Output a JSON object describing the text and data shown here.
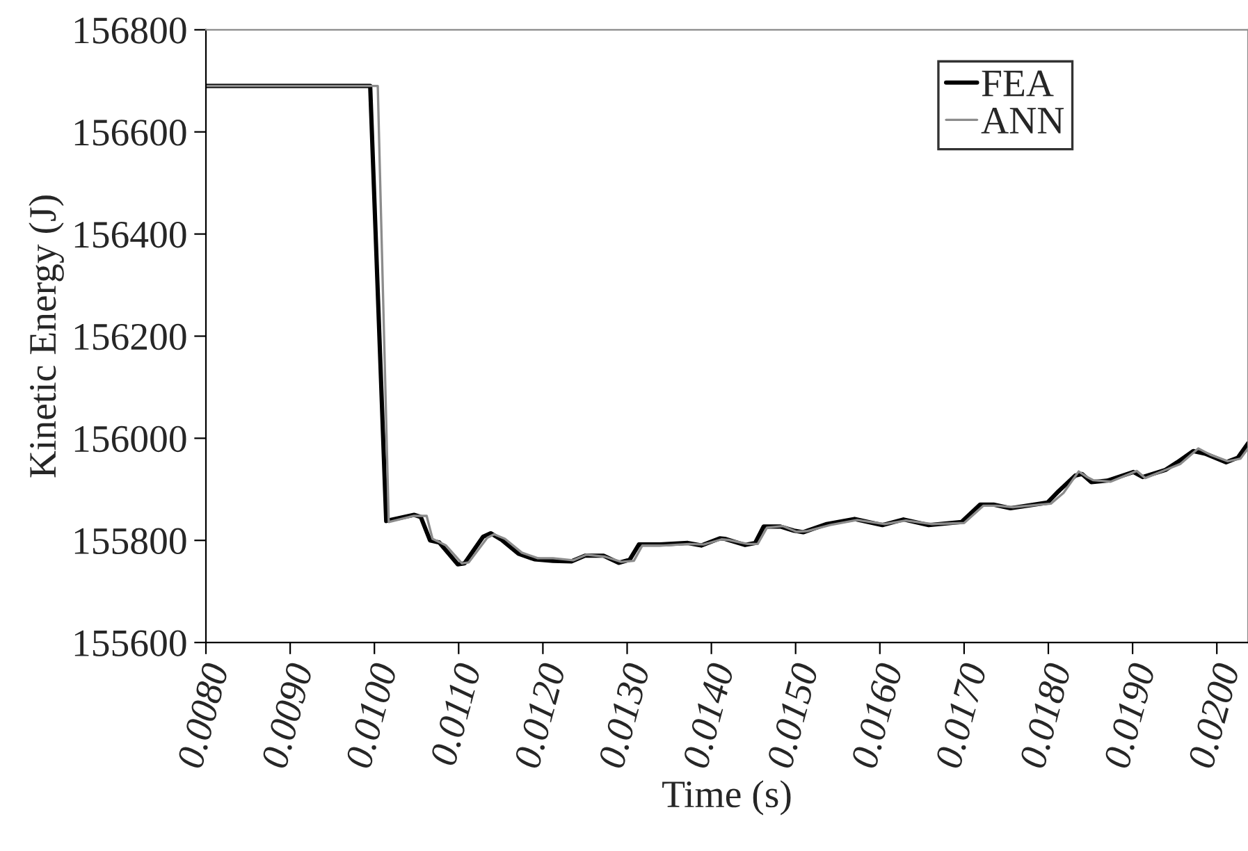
{
  "chart_data": {
    "type": "line",
    "xlabel": "Time (s)",
    "ylabel": "Kinetic Energy (J)",
    "xlim": [
      0.008,
      0.02037
    ],
    "ylim": [
      155600,
      156800
    ],
    "xticks": [
      {
        "value": 0.008,
        "label": "0.0080"
      },
      {
        "value": 0.009,
        "label": "0.0090"
      },
      {
        "value": 0.01,
        "label": "0.0100"
      },
      {
        "value": 0.011,
        "label": "0.0110"
      },
      {
        "value": 0.012,
        "label": "0.0120"
      },
      {
        "value": 0.013,
        "label": "0.0130"
      },
      {
        "value": 0.014,
        "label": "0.0140"
      },
      {
        "value": 0.015,
        "label": "0.0150"
      },
      {
        "value": 0.016,
        "label": "0.0160"
      },
      {
        "value": 0.017,
        "label": "0.0170"
      },
      {
        "value": 0.018,
        "label": "0.0180"
      },
      {
        "value": 0.019,
        "label": "0.0190"
      },
      {
        "value": 0.02,
        "label": "0.0200"
      }
    ],
    "yticks": [
      155600,
      155800,
      156000,
      156200,
      156400,
      156600,
      156800
    ],
    "grid": false,
    "legend": "top right",
    "marker": "none",
    "line_style": "solid",
    "series": [
      {
        "name": "FEA",
        "color": "#000000",
        "x": [
          0.008,
          0.00995,
          0.01014,
          0.01047,
          0.01055,
          0.01066,
          0.01077,
          0.01099,
          0.01107,
          0.01129,
          0.01138,
          0.01151,
          0.01171,
          0.0119,
          0.01212,
          0.01234,
          0.0125,
          0.01272,
          0.0129,
          0.01303,
          0.01314,
          0.01339,
          0.01372,
          0.01388,
          0.0141,
          0.01416,
          0.0144,
          0.01452,
          0.01462,
          0.01482,
          0.01498,
          0.01509,
          0.01537,
          0.0157,
          0.01603,
          0.01628,
          0.01658,
          0.01697,
          0.01719,
          0.01735,
          0.01755,
          0.01799,
          0.01812,
          0.01832,
          0.0184,
          0.01851,
          0.0187,
          0.01901,
          0.01912,
          0.01939,
          0.01953,
          0.01972,
          0.01986,
          0.02011,
          0.02025,
          0.02037
        ],
        "values": [
          156690,
          156690,
          155838,
          155850,
          155846,
          155800,
          155796,
          155753,
          155755,
          155807,
          155814,
          155801,
          155774,
          155763,
          155760,
          155759,
          155770,
          155770,
          155756,
          155762,
          155792,
          155792,
          155795,
          155790,
          155804,
          155803,
          155791,
          155795,
          155827,
          155827,
          155819,
          155816,
          155832,
          155842,
          155830,
          155841,
          155830,
          155836,
          155870,
          155870,
          155863,
          155874,
          155896,
          155927,
          155930,
          155914,
          155917,
          155934,
          155924,
          155938,
          155953,
          155975,
          155970,
          155953,
          155962,
          155990
        ]
      },
      {
        "name": "ANN",
        "color": "#8c8c8c",
        "x": [
          0.008,
          0.01004,
          0.01017,
          0.01047,
          0.01062,
          0.01069,
          0.01085,
          0.01104,
          0.01112,
          0.01134,
          0.01142,
          0.01155,
          0.01175,
          0.01194,
          0.01212,
          0.01236,
          0.01252,
          0.01274,
          0.01293,
          0.01308,
          0.01318,
          0.01343,
          0.01374,
          0.01391,
          0.01412,
          0.0142,
          0.01443,
          0.01455,
          0.01466,
          0.01485,
          0.01501,
          0.01513,
          0.01541,
          0.01573,
          0.01606,
          0.01631,
          0.01662,
          0.017,
          0.01723,
          0.01739,
          0.01758,
          0.01803,
          0.01818,
          0.01836,
          0.01845,
          0.01853,
          0.01874,
          0.01905,
          0.01915,
          0.01942,
          0.01957,
          0.01978,
          0.01992,
          0.02013,
          0.02028,
          0.02037
        ],
        "values": [
          156690,
          156690,
          155836,
          155848,
          155848,
          155803,
          155790,
          155755,
          155757,
          155805,
          155812,
          155803,
          155776,
          155765,
          155765,
          155761,
          155772,
          155768,
          155758,
          155760,
          155790,
          155790,
          155793,
          155792,
          155802,
          155801,
          155793,
          155793,
          155825,
          155828,
          155817,
          155818,
          155830,
          155840,
          155832,
          155839,
          155832,
          155834,
          155868,
          155868,
          155865,
          155872,
          155893,
          155935,
          155925,
          155918,
          155915,
          155936,
          155922,
          155940,
          155950,
          155980,
          155968,
          155955,
          155960,
          155980
        ]
      }
    ]
  }
}
